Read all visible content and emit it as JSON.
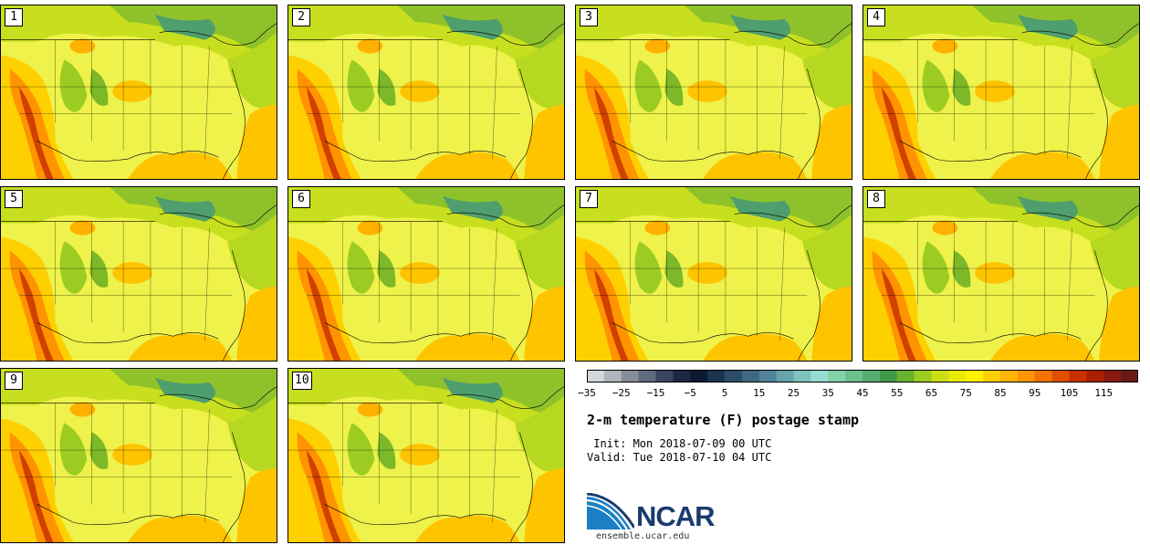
{
  "panels": [
    {
      "label": "1"
    },
    {
      "label": "2"
    },
    {
      "label": "3"
    },
    {
      "label": "4"
    },
    {
      "label": "5"
    },
    {
      "label": "6"
    },
    {
      "label": "7"
    },
    {
      "label": "8"
    },
    {
      "label": "9"
    },
    {
      "label": "10"
    }
  ],
  "colorbar": {
    "colors": [
      "#d4d8dc",
      "#b0b5bd",
      "#868d99",
      "#606b7e",
      "#3a4660",
      "#1c2742",
      "#0c1a30",
      "#1a3450",
      "#2c4d68",
      "#3f6882",
      "#51849a",
      "#66a3ad",
      "#7fc2c0",
      "#95ddd3",
      "#84d2a8",
      "#6dbf8c",
      "#55ad72",
      "#3f9a48",
      "#6ab22e",
      "#9ccc22",
      "#cadf14",
      "#e8ec00",
      "#fff200",
      "#ffd000",
      "#ffb200",
      "#ff9400",
      "#f47200",
      "#e04e00",
      "#c83000",
      "#aa2000",
      "#8a1a10",
      "#6a1a14"
    ],
    "tick_labels": [
      "−35",
      "−25",
      "−15",
      "−5",
      "5",
      "15",
      "25",
      "35",
      "45",
      "55",
      "65",
      "75",
      "85",
      "95",
      "105",
      "115"
    ]
  },
  "title": "2-m temperature (F) postage stamp",
  "init_line": " Init: Mon 2018-07-09 00 UTC",
  "valid_line": "Valid: Tue 2018-07-10 04 UTC",
  "logo_text": "NCAR",
  "url": "ensemble.ucar.edu"
}
